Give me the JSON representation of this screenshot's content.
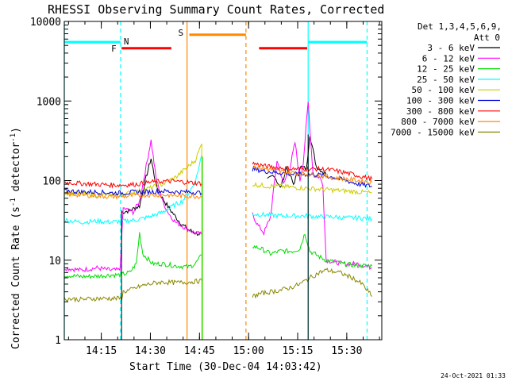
{
  "chart_data": {
    "type": "line",
    "title": "RHESSI Observing Summary Count Rates, Corrected",
    "xlabel": "Start Time (30-Dec-04 14:03:42)",
    "ylabel_main": "Corrected Count Rate (s",
    "ylabel_sup1": "-1",
    "ylabel_mid": " detector",
    "ylabel_sup2": "-1",
    "ylabel_end": ")",
    "y_scale": "log",
    "ylim": [
      1,
      10000
    ],
    "xlim_minutes": [
      0,
      97
    ],
    "y_ticks": [
      "1",
      "10",
      "100",
      "1000",
      "10000"
    ],
    "x_ticks": [
      {
        "label": "14:15",
        "min": 11.3
      },
      {
        "label": "14:30",
        "min": 26.3
      },
      {
        "label": "14:45",
        "min": 41.3
      },
      {
        "label": "15:00",
        "min": 56.3
      },
      {
        "label": "15:15",
        "min": 71.3
      },
      {
        "label": "15:30",
        "min": 86.3
      }
    ],
    "legend": {
      "header1": "Det 1,3,4,5,6,9,",
      "header2": "Att 0",
      "position": "right"
    },
    "series": [
      {
        "name": "3 - 6 keV",
        "color": "#000000",
        "segments": [
          [
            [
              17.5,
              40
            ],
            [
              20,
              42
            ],
            [
              23,
              48
            ],
            [
              25,
              110
            ],
            [
              26.5,
              190
            ],
            [
              28,
              90
            ],
            [
              30,
              60
            ],
            [
              32,
              45
            ],
            [
              34,
              35
            ],
            [
              36,
              28
            ],
            [
              38,
              24
            ],
            [
              40,
              22
            ],
            [
              42,
              21
            ]
          ],
          [
            [
              62,
              100
            ],
            [
              64,
              120
            ],
            [
              66,
              80
            ],
            [
              68,
              150
            ],
            [
              70,
              90
            ],
            [
              72,
              150
            ],
            [
              74,
              140
            ],
            [
              75,
              380
            ],
            [
              77,
              150
            ],
            [
              79,
              130
            ],
            [
              80,
              120
            ]
          ]
        ]
      },
      {
        "name": "6 - 12 keV",
        "color": "#ff00ff",
        "segments": [
          [
            [
              0,
              8
            ],
            [
              5,
              7.5
            ],
            [
              10,
              8
            ],
            [
              14,
              7.5
            ],
            [
              17,
              7.5
            ],
            [
              18,
              45
            ],
            [
              21,
              40
            ],
            [
              23,
              55
            ],
            [
              25,
              150
            ],
            [
              26.5,
              320
            ],
            [
              28,
              110
            ],
            [
              30,
              55
            ],
            [
              32,
              38
            ],
            [
              34,
              30
            ],
            [
              36,
              27
            ],
            [
              38,
              24
            ],
            [
              40,
              22
            ],
            [
              42,
              21
            ]
          ],
          [
            [
              57.5,
              38
            ],
            [
              59,
              28
            ],
            [
              61,
              22
            ],
            [
              63,
              35
            ],
            [
              65,
              180
            ],
            [
              67,
              90
            ],
            [
              69,
              150
            ],
            [
              70.5,
              300
            ],
            [
              72,
              100
            ],
            [
              73,
              170
            ],
            [
              74.5,
              960
            ],
            [
              76,
              120
            ],
            [
              78,
              110
            ],
            [
              79,
              90
            ],
            [
              80,
              10
            ],
            [
              85,
              9
            ],
            [
              90,
              9
            ],
            [
              94,
              8
            ]
          ]
        ]
      },
      {
        "name": "12 - 25 keV",
        "color": "#00dd00",
        "segments": [
          [
            [
              0,
              6.5
            ],
            [
              5,
              6.2
            ],
            [
              10,
              6.3
            ],
            [
              14,
              6.5
            ],
            [
              17,
              6.5
            ],
            [
              20,
              7
            ],
            [
              22,
              9
            ],
            [
              23,
              22
            ],
            [
              24,
              12
            ],
            [
              27,
              9
            ],
            [
              30,
              9
            ],
            [
              34,
              8.5
            ],
            [
              38,
              8.2
            ],
            [
              40,
              9
            ],
            [
              42,
              11.5
            ]
          ],
          [
            [
              57.5,
              15
            ],
            [
              60,
              14
            ],
            [
              63,
              12
            ],
            [
              66,
              13
            ],
            [
              70,
              13
            ],
            [
              72,
              14
            ],
            [
              73.5,
              22
            ],
            [
              75,
              13
            ],
            [
              78,
              11
            ],
            [
              80,
              10
            ],
            [
              85,
              9
            ],
            [
              90,
              8.5
            ],
            [
              94,
              8.5
            ]
          ]
        ]
      },
      {
        "name": "25 - 50 keV",
        "color": "#00ffff",
        "segments": [
          [
            [
              0,
              32
            ],
            [
              5,
              30
            ],
            [
              10,
              31
            ],
            [
              14,
              30
            ],
            [
              18,
              31
            ],
            [
              22,
              32
            ],
            [
              26,
              35
            ],
            [
              30,
              40
            ],
            [
              34,
              50
            ],
            [
              36,
              55
            ],
            [
              38,
              70
            ],
            [
              40,
              95
            ],
            [
              42,
              210
            ]
          ],
          [
            [
              57.5,
              38
            ],
            [
              62,
              37
            ],
            [
              66,
              36
            ],
            [
              70,
              36
            ],
            [
              74,
              36
            ],
            [
              78,
              35
            ],
            [
              82,
              35
            ],
            [
              86,
              34
            ],
            [
              90,
              34
            ],
            [
              94,
              33
            ]
          ]
        ]
      },
      {
        "name": "50 - 100 keV",
        "color": "#cccc00",
        "segments": [
          [
            [
              0,
              70
            ],
            [
              5,
              68
            ],
            [
              10,
              66
            ],
            [
              14,
              66
            ],
            [
              18,
              68
            ],
            [
              22,
              72
            ],
            [
              26,
              80
            ],
            [
              30,
              90
            ],
            [
              34,
              110
            ],
            [
              37,
              140
            ],
            [
              40,
              180
            ],
            [
              42,
              290
            ]
          ],
          [
            [
              57.5,
              90
            ],
            [
              62,
              85
            ],
            [
              66,
              85
            ],
            [
              70,
              82
            ],
            [
              74,
              80
            ],
            [
              78,
              78
            ],
            [
              82,
              76
            ],
            [
              86,
              74
            ],
            [
              90,
              72
            ],
            [
              94,
              70
            ]
          ]
        ]
      },
      {
        "name": "100 - 300 keV",
        "color": "#0000dd",
        "segments": [
          [
            [
              0,
              75
            ],
            [
              5,
              72
            ],
            [
              10,
              72
            ],
            [
              14,
              70
            ],
            [
              18,
              70
            ],
            [
              22,
              72
            ],
            [
              26,
              72
            ],
            [
              30,
              74
            ],
            [
              34,
              72
            ],
            [
              38,
              72
            ],
            [
              42,
              70
            ]
          ],
          [
            [
              57.5,
              140
            ],
            [
              62,
              130
            ],
            [
              66,
              125
            ],
            [
              70,
              120
            ],
            [
              74,
              120
            ],
            [
              78,
              118
            ],
            [
              82,
              110
            ],
            [
              86,
              100
            ],
            [
              90,
              90
            ],
            [
              94,
              85
            ]
          ]
        ]
      },
      {
        "name": "300 - 800 keV",
        "color": "#ff0000",
        "segments": [
          [
            [
              0,
              95
            ],
            [
              5,
              92
            ],
            [
              10,
              90
            ],
            [
              14,
              88
            ],
            [
              18,
              88
            ],
            [
              22,
              90
            ],
            [
              26,
              95
            ],
            [
              30,
              98
            ],
            [
              34,
              98
            ],
            [
              38,
              95
            ],
            [
              42,
              92
            ]
          ],
          [
            [
              57.5,
              165
            ],
            [
              62,
              150
            ],
            [
              66,
              145
            ],
            [
              70,
              140
            ],
            [
              74,
              140
            ],
            [
              78,
              140
            ],
            [
              82,
              135
            ],
            [
              86,
              125
            ],
            [
              90,
              115
            ],
            [
              94,
              105
            ]
          ]
        ]
      },
      {
        "name": "800 - 7000 keV",
        "color": "#ff8800",
        "segments": [
          [
            [
              0,
              68
            ],
            [
              5,
              66
            ],
            [
              10,
              64
            ],
            [
              14,
              63
            ],
            [
              18,
              63
            ],
            [
              22,
              65
            ],
            [
              26,
              66
            ],
            [
              30,
              66
            ],
            [
              34,
              65
            ],
            [
              38,
              64
            ],
            [
              42,
              63
            ]
          ],
          [
            [
              57.5,
              150
            ],
            [
              62,
              140
            ],
            [
              66,
              130
            ],
            [
              70,
              125
            ],
            [
              74,
              120
            ],
            [
              78,
              115
            ],
            [
              82,
              110
            ],
            [
              86,
              105
            ],
            [
              90,
              100
            ],
            [
              94,
              95
            ]
          ]
        ]
      },
      {
        "name": "7000 - 15000 keV",
        "color": "#888800",
        "segments": [
          [
            [
              0,
              3.3
            ],
            [
              5,
              3.2
            ],
            [
              10,
              3.3
            ],
            [
              14,
              3.3
            ],
            [
              17.5,
              3.3
            ],
            [
              18,
              4
            ],
            [
              20,
              4.2
            ],
            [
              22,
              4.5
            ],
            [
              24,
              4.8
            ],
            [
              26,
              5
            ],
            [
              28,
              5.2
            ],
            [
              30,
              5.3
            ],
            [
              34,
              5.2
            ],
            [
              38,
              5.3
            ],
            [
              42,
              5.5
            ]
          ],
          [
            [
              57.5,
              3.5
            ],
            [
              60,
              3.8
            ],
            [
              63,
              4
            ],
            [
              66,
              4.2
            ],
            [
              69,
              4.5
            ],
            [
              72,
              5
            ],
            [
              75,
              6
            ],
            [
              78,
              7
            ],
            [
              80,
              7.5
            ],
            [
              84,
              7
            ],
            [
              88,
              6
            ],
            [
              91,
              5
            ],
            [
              94,
              3.5
            ]
          ]
        ]
      }
    ],
    "annotations": {
      "night_label": "N",
      "flare_label": "F",
      "saa_label": "S",
      "vlines": [
        {
          "min": 0,
          "color": "#00ffff",
          "style": "solid"
        },
        {
          "min": 17.2,
          "color": "#00ffff",
          "style": "dashed"
        },
        {
          "min": 37.5,
          "color": "#ff8800",
          "style": "solid"
        },
        {
          "min": 55.5,
          "color": "#ff8800",
          "style": "dashed"
        },
        {
          "min": 74.5,
          "color": "#00ffff",
          "style": "solid"
        },
        {
          "min": 92.5,
          "color": "#00ffff",
          "style": "dashed"
        }
      ],
      "bars": [
        {
          "name": "night",
          "color": "#00ffff",
          "from": 0,
          "to": 17.2,
          "y": 5500
        },
        {
          "name": "night",
          "color": "#00ffff",
          "from": 74.5,
          "to": 92.5,
          "y": 5500
        },
        {
          "name": "flare",
          "color": "#ff0000",
          "from": 17.5,
          "to": 32.7,
          "y": 4600
        },
        {
          "name": "flare",
          "color": "#ff0000",
          "from": 59.5,
          "to": 74.2,
          "y": 4600
        },
        {
          "name": "saa",
          "color": "#ff8800",
          "from": 38.2,
          "to": 55.5,
          "y": 6800
        }
      ]
    }
  },
  "footer_timestamp": "24-Oct-2021 01:33"
}
